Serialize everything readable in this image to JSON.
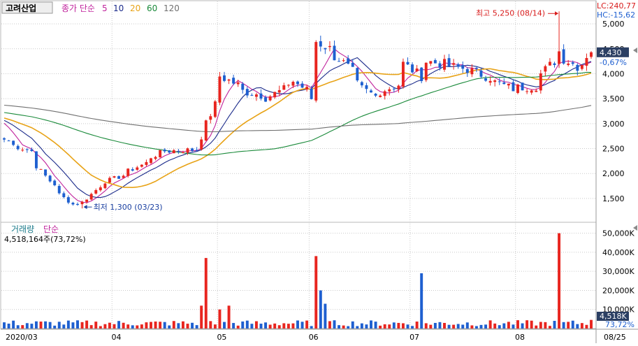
{
  "stock": {
    "name": "고려산업"
  },
  "legend": {
    "price_label": "종가 단순",
    "ma_periods": [
      "5",
      "10",
      "20",
      "60",
      "120"
    ],
    "ma_colors": [
      "#c0229c",
      "#1a2a8a",
      "#e8a317",
      "#1a8a3a",
      "#707070"
    ]
  },
  "readouts": {
    "lc": "LC:240,77",
    "hc": "HC:-15,62"
  },
  "annotations": {
    "high_label": "최고 5,250 (08/14)",
    "low_label": "최저 1,300 (03/23)"
  },
  "current": {
    "price": "4,430",
    "change": "-0,67%",
    "volume": "4,518K",
    "volume_pct": "73,72%"
  },
  "volume_panel": {
    "title": "거래량",
    "mode": "단순",
    "value_text": "4,518,164주(73,72%)"
  },
  "price_axis": {
    "ticks": [
      5000,
      4500,
      4000,
      3500,
      3000,
      2500,
      2000,
      1500
    ],
    "tick_labels": [
      "5,000",
      "4,500",
      "4,000",
      "3,500",
      "3,000",
      "2,500",
      "2,000",
      "1,500"
    ]
  },
  "volume_axis": {
    "tick_labels": [
      "50,000K",
      "40,000K",
      "30,000K",
      "20,000K",
      "10,000K"
    ]
  },
  "x_axis": {
    "labels": [
      "2020/03",
      "04",
      "05",
      "06",
      "07",
      "08",
      "08/25"
    ]
  },
  "colors": {
    "up": "#e8251f",
    "down": "#1e5fd0",
    "high_annot": "#d81c1c",
    "low_annot": "#1a3fa0",
    "grid": "#c9c9c9",
    "badge_bg": "#2b3f63"
  },
  "chart_data": {
    "type": "candlestick",
    "title": "고려산업",
    "y_range": [
      1050,
      5450
    ],
    "volume_range_k": [
      0,
      55000
    ],
    "price_anchors": [
      {
        "date": "2020/02/27",
        "close": 2680
      },
      {
        "date": "2020/03/06",
        "close": 2450
      },
      {
        "date": "2020/03/12",
        "close": 1850
      },
      {
        "date": "2020/03/19",
        "close": 1380
      },
      {
        "date": "2020/03/23",
        "close": 1420
      },
      {
        "date": "2020/03/27",
        "close": 1750
      },
      {
        "date": "2020/04/06",
        "close": 2050
      },
      {
        "date": "2020/04/16",
        "close": 2450
      },
      {
        "date": "2020/04/27",
        "close": 2480
      },
      {
        "date": "2020/04/29",
        "close": 3000
      },
      {
        "date": "2020/05/04",
        "close": 3950
      },
      {
        "date": "2020/05/11",
        "close": 3650
      },
      {
        "date": "2020/05/18",
        "close": 3520
      },
      {
        "date": "2020/05/26",
        "close": 3850
      },
      {
        "date": "2020/06/01",
        "close": 3500
      },
      {
        "date": "2020/06/02",
        "close": 4650
      },
      {
        "date": "2020/06/09",
        "close": 4300
      },
      {
        "date": "2020/06/16",
        "close": 3700
      },
      {
        "date": "2020/06/19",
        "close": 3550
      },
      {
        "date": "2020/06/26",
        "close": 3780
      },
      {
        "date": "2020/06/29",
        "close": 4200
      },
      {
        "date": "2020/07/03",
        "close": 3950
      },
      {
        "date": "2020/07/06",
        "close": 4250
      },
      {
        "date": "2020/07/13",
        "close": 4150
      },
      {
        "date": "2020/07/20",
        "close": 4050
      },
      {
        "date": "2020/07/31",
        "close": 3700
      },
      {
        "date": "2020/08/07",
        "close": 3750
      },
      {
        "date": "2020/08/13",
        "close": 4250
      },
      {
        "date": "2020/08/14",
        "close": 4450
      },
      {
        "date": "2020/08/20",
        "close": 4150
      },
      {
        "date": "2020/08/25",
        "close": 4430
      }
    ],
    "high": {
      "date": "2020/08/14",
      "value": 5250
    },
    "low": {
      "date": "2020/03/23",
      "value": 1300
    },
    "last_close": 4430,
    "last_change_pct": -0.67,
    "last_volume": 4518164,
    "volume_spikes_k": [
      {
        "date": "2020/04/28",
        "value": 12000
      },
      {
        "date": "2020/04/29",
        "value": 37000
      },
      {
        "date": "2020/05/04",
        "value": 10000
      },
      {
        "date": "2020/05/06",
        "value": 12000
      },
      {
        "date": "2020/06/02",
        "value": 38000
      },
      {
        "date": "2020/06/03",
        "value": 20000
      },
      {
        "date": "2020/06/04",
        "value": 13000
      },
      {
        "date": "2020/07/03",
        "value": 29000
      },
      {
        "date": "2020/08/14",
        "value": 50000
      }
    ],
    "moving_average_periods": [
      5,
      10,
      20,
      60,
      120
    ]
  }
}
